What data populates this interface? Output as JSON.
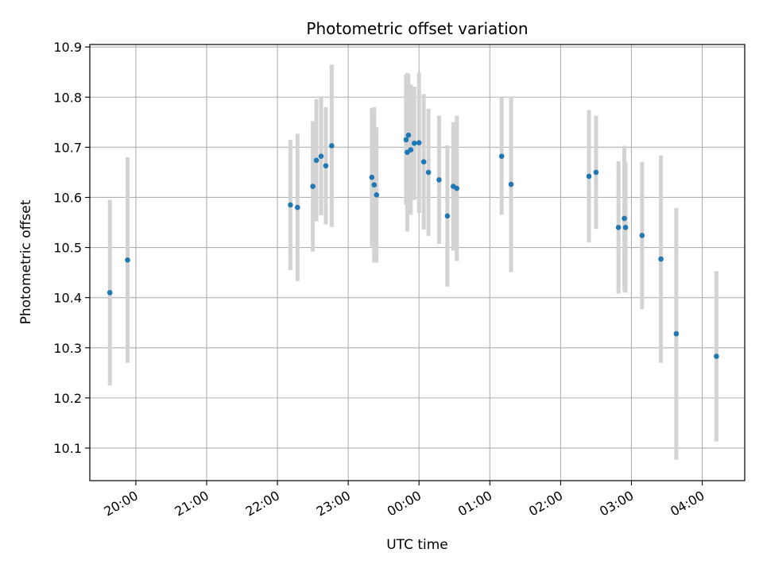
{
  "chart_data": {
    "type": "scatter",
    "title": "Photometric offset variation",
    "xlabel": "UTC time",
    "ylabel": "Photometric offset",
    "x_unit": "UTC time of day (dates wrap past midnight)",
    "xlim": [
      "19:21",
      "04:36"
    ],
    "ylim": [
      10.035,
      10.905
    ],
    "x_ticks": [
      "20:00",
      "21:00",
      "22:00",
      "23:00",
      "00:00",
      "01:00",
      "02:00",
      "03:00",
      "04:00"
    ],
    "y_ticks": [
      "10.1",
      "10.2",
      "10.3",
      "10.4",
      "10.5",
      "10.6",
      "10.7",
      "10.8",
      "10.9"
    ],
    "grid": true,
    "colors": {
      "point": "#1f77b4",
      "errorbar": "#d3d3d3",
      "grid": "#b0b0b0"
    },
    "series": [
      {
        "points": [
          {
            "x": "19:38",
            "y": 10.41,
            "err": 0.185
          },
          {
            "x": "19:53",
            "y": 10.475,
            "err": 0.205
          },
          {
            "x": "22:11",
            "y": 10.585,
            "err": 0.13
          },
          {
            "x": "22:17",
            "y": 10.58,
            "err": 0.147
          },
          {
            "x": "22:30",
            "y": 10.622,
            "err": 0.13
          },
          {
            "x": "22:33",
            "y": 10.674,
            "err": 0.122
          },
          {
            "x": "22:37",
            "y": 10.682,
            "err": 0.118
          },
          {
            "x": "22:41",
            "y": 10.663,
            "err": 0.117
          },
          {
            "x": "22:46",
            "y": 10.703,
            "err": 0.162
          },
          {
            "x": "23:20",
            "y": 10.64,
            "err": 0.138
          },
          {
            "x": "23:22",
            "y": 10.625,
            "err": 0.155
          },
          {
            "x": "23:24",
            "y": 10.605,
            "err": 0.135
          },
          {
            "x": "23:49",
            "y": 10.715,
            "err": 0.13
          },
          {
            "x": "23:50",
            "y": 10.69,
            "err": 0.158
          },
          {
            "x": "23:51",
            "y": 10.724,
            "err": 0.122
          },
          {
            "x": "23:53",
            "y": 10.695,
            "err": 0.13
          },
          {
            "x": "23:56",
            "y": 10.708,
            "err": 0.113
          },
          {
            "x": "00:00",
            "y": 10.709,
            "err": 0.14
          },
          {
            "x": "00:04",
            "y": 10.671,
            "err": 0.135
          },
          {
            "x": "00:08",
            "y": 10.65,
            "err": 0.127
          },
          {
            "x": "00:17",
            "y": 10.635,
            "err": 0.128
          },
          {
            "x": "00:24",
            "y": 10.563,
            "err": 0.141
          },
          {
            "x": "00:29",
            "y": 10.622,
            "err": 0.128
          },
          {
            "x": "00:32",
            "y": 10.618,
            "err": 0.145
          },
          {
            "x": "01:10",
            "y": 10.682,
            "err": 0.117
          },
          {
            "x": "01:18",
            "y": 10.626,
            "err": 0.175
          },
          {
            "x": "02:24",
            "y": 10.642,
            "err": 0.132
          },
          {
            "x": "02:30",
            "y": 10.65,
            "err": 0.113
          },
          {
            "x": "02:49",
            "y": 10.54,
            "err": 0.132
          },
          {
            "x": "02:54",
            "y": 10.558,
            "err": 0.145
          },
          {
            "x": "02:55",
            "y": 10.54,
            "err": 0.13
          },
          {
            "x": "03:09",
            "y": 10.524,
            "err": 0.147
          },
          {
            "x": "03:25",
            "y": 10.477,
            "err": 0.207
          },
          {
            "x": "03:38",
            "y": 10.328,
            "err": 0.251
          },
          {
            "x": "04:12",
            "y": 10.283,
            "err": 0.17
          }
        ]
      }
    ]
  }
}
